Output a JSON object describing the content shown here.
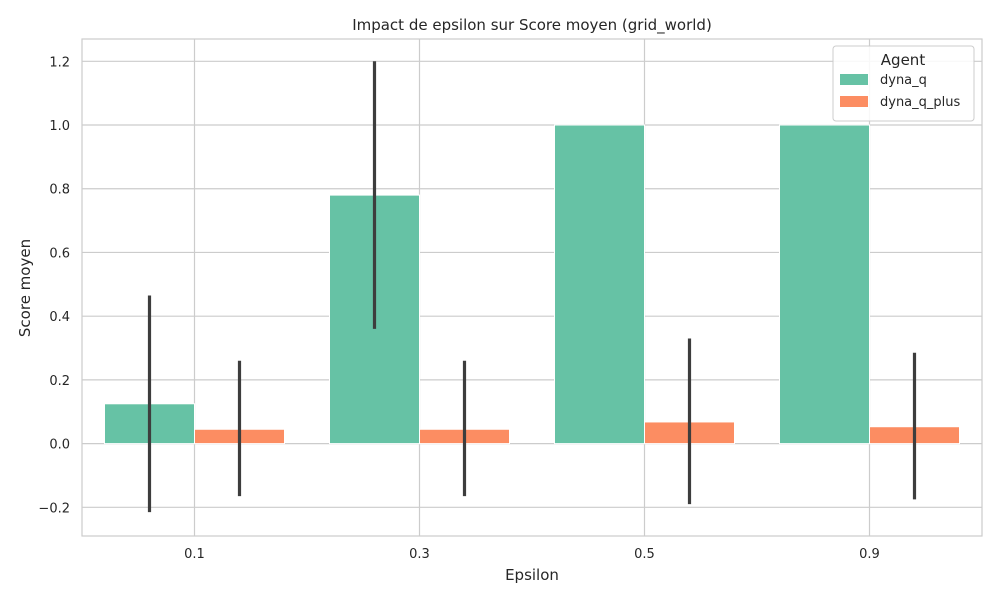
{
  "chart_data": {
    "type": "bar",
    "title": "Impact de epsilon sur Score moyen (grid_world)",
    "xlabel": "Epsilon",
    "ylabel": "Score moyen",
    "categories": [
      "0.1",
      "0.3",
      "0.5",
      "0.9"
    ],
    "ylim": [
      -0.29,
      1.27
    ],
    "yticks": [
      -0.2,
      0.0,
      0.2,
      0.4,
      0.6,
      0.8,
      1.0,
      1.2
    ],
    "ytick_labels": [
      "−0.2",
      "0.0",
      "0.2",
      "0.4",
      "0.6",
      "0.8",
      "1.0",
      "1.2"
    ],
    "grid": true,
    "legend": {
      "title": "Agent",
      "placement": "top-right"
    },
    "series": [
      {
        "name": "dyna_q",
        "color": "#66c2a5",
        "values": [
          0.125,
          0.78,
          1.0,
          1.0
        ],
        "error_low": [
          -0.215,
          0.36,
          1.0,
          1.0
        ],
        "error_high": [
          0.465,
          1.2,
          1.0,
          1.0
        ]
      },
      {
        "name": "dyna_q_plus",
        "color": "#fc8d62",
        "values": [
          0.045,
          0.045,
          0.068,
          0.053
        ],
        "error_low": [
          -0.165,
          -0.165,
          -0.19,
          -0.175
        ],
        "error_high": [
          0.26,
          0.26,
          0.33,
          0.285
        ]
      }
    ]
  }
}
